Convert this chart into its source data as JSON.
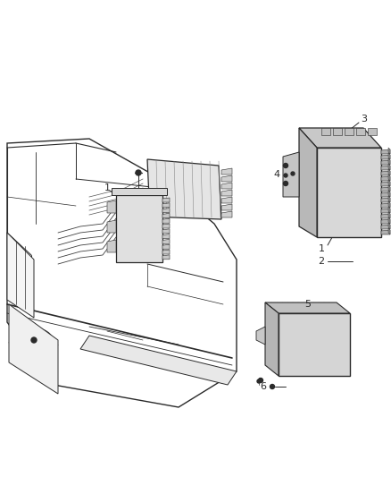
{
  "bg_color": "#ffffff",
  "fig_width": 4.38,
  "fig_height": 5.33,
  "dpi": 100,
  "line_color": "#2a2a2a",
  "light_gray": "#c8c8c8",
  "med_gray": "#aaaaaa",
  "dark_gray": "#555555"
}
